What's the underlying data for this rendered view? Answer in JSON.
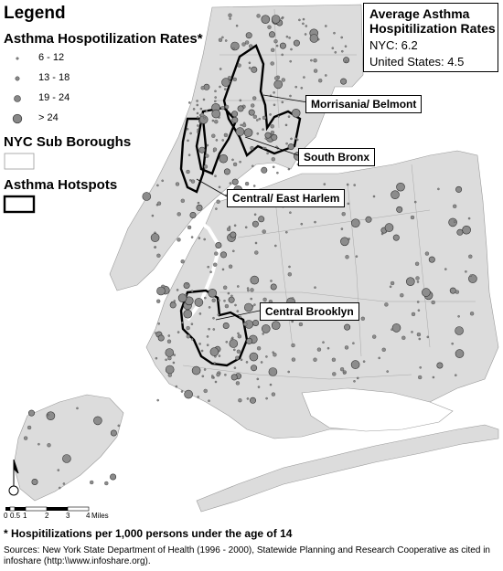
{
  "legend": {
    "title": "Legend",
    "rates_title": "Asthma Hospotilization Rates*",
    "rate_classes": [
      "6 - 12",
      "13 - 18",
      "19 - 24",
      "> 24"
    ],
    "subboroughs_title": "NYC Sub Boroughs",
    "hotspots_title": "Asthma Hotspots"
  },
  "average_box": {
    "title": "Average Asthma Hospitilization Rates",
    "nyc": "NYC: 6.2",
    "us": "United States: 4.5"
  },
  "callouts": {
    "morrisania": "Morrisania/ Belmont",
    "south_bronx": "South Bronx",
    "east_harlem": "Central/ East Harlem",
    "central_brooklyn": "Central Brooklyn"
  },
  "scale_bar": {
    "ticks": [
      "0",
      "0.5",
      "1",
      "2",
      "3",
      "4"
    ],
    "unit": "Miles"
  },
  "footnote": "* Hospitilizations per 1,000 persons under the age of 14",
  "source": "Sources: New York State Department of Health (1996 - 2000), Statewide Planning and Research Cooperative as cited in infoshare (http:\\\\www.infoshare.org).",
  "colors": {
    "land": "#dcdcdc",
    "water": "#ffffff",
    "dot": "#8c8c8c",
    "hotspot_outline": "#000000"
  },
  "icons": {
    "north_arrow": "north-arrow-icon"
  }
}
